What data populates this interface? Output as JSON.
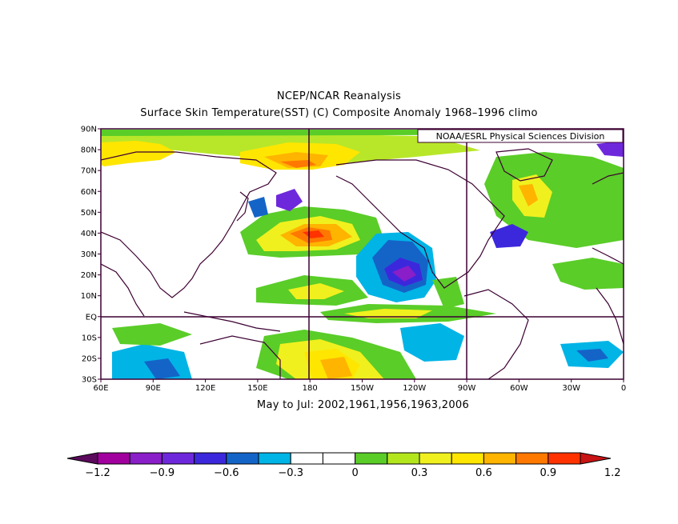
{
  "title_line1": "NCEP/NCAR Reanalysis",
  "title_line2": "Surface Skin Temperature(SST) (C) Composite Anomaly 1968–1996 climo",
  "credit": "NOAA/ESRL Physical Sciences Division",
  "caption": "May to Jul: 2002,1961,1956,1963,2006",
  "lat_labels": [
    "90N",
    "80N",
    "70N",
    "60N",
    "50N",
    "40N",
    "30N",
    "20N",
    "10N",
    "EQ",
    "10S",
    "20S",
    "30S"
  ],
  "lon_labels": [
    "60E",
    "90E",
    "120E",
    "150E",
    "180",
    "150W",
    "120W",
    "90W",
    "60W",
    "30W",
    "0"
  ],
  "colorbar": {
    "colors": [
      "#5c0a5c",
      "#a1009e",
      "#8a1ec8",
      "#6e28dc",
      "#3c28dc",
      "#1464c8",
      "#00b4e6",
      "#ffffff",
      "#ffffff",
      "#5acd28",
      "#b4e61e",
      "#f0f01e",
      "#ffe600",
      "#ffb400",
      "#ff7800",
      "#ff3200",
      "#c81414"
    ],
    "labels": [
      "−1.2",
      "−0.9",
      "−0.6",
      "−0.3",
      "0",
      "0.3",
      "0.6",
      "0.9",
      "1.2"
    ]
  },
  "colors": {
    "continent_outline": "#3c0032",
    "frame": "#3c0032"
  }
}
